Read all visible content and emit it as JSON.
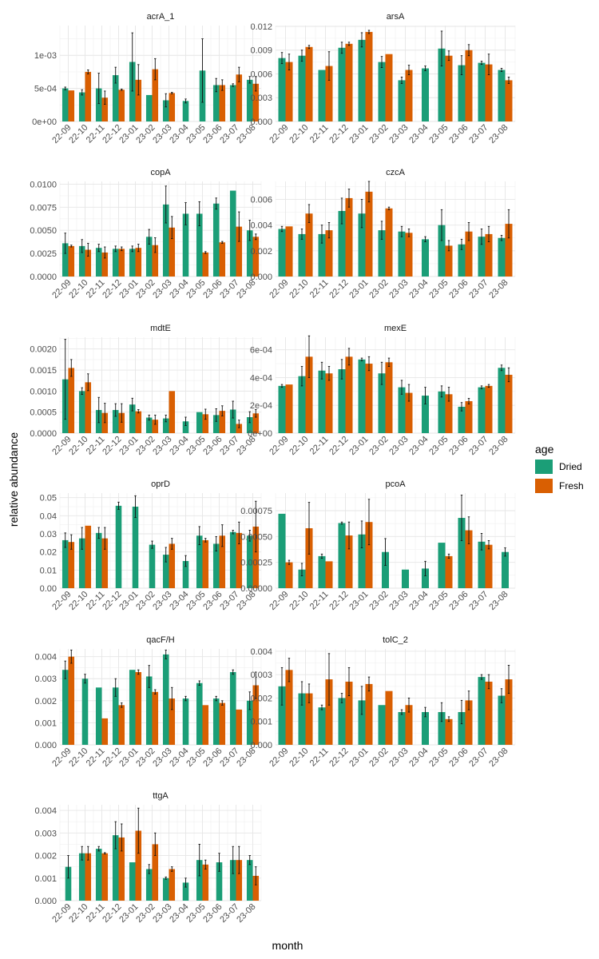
{
  "chart_data": {
    "type": "bar",
    "xlabel": "month",
    "ylabel": "relative abundance",
    "legend": {
      "title": "age",
      "placement": "right",
      "items": [
        {
          "name": "Dried",
          "color": "#1b9e77"
        },
        {
          "name": "Fresh",
          "color": "#d95f02"
        }
      ]
    },
    "months": [
      "22-09",
      "22-10",
      "22-11",
      "22-12",
      "23-01",
      "23-02",
      "23-03",
      "23-04",
      "23-05",
      "23-06",
      "23-07",
      "23-08"
    ],
    "panels": [
      {
        "title": "acrA_1",
        "ylim": [
          0,
          0.00145
        ],
        "ticks": [
          0,
          0.0005,
          0.001
        ],
        "tick_labels": [
          "0e+00",
          "5e-04",
          "1e-03"
        ],
        "dried": [
          0.0005,
          0.00044,
          0.0005,
          0.0007,
          0.0009,
          0.0004,
          0.00032,
          0.00031,
          0.00077,
          0.00055,
          0.00055,
          0.00063
        ],
        "dried_err": [
          2e-05,
          4e-05,
          0.00023,
          0.00012,
          0.00044,
          0,
          0.0001,
          3e-05,
          0.00048,
          0.0001,
          2e-05,
          5e-05
        ],
        "fresh": [
          0.00047,
          0.00075,
          0.00036,
          0.00048,
          0.00063,
          0.00079,
          0.00043,
          null,
          null,
          0.00055,
          0.00071,
          0.00057
        ],
        "fresh_err": [
          0,
          3e-05,
          0.0001,
          1e-05,
          0.00023,
          0.00016,
          1e-05,
          0,
          0,
          8e-05,
          0.00011,
          0.00011
        ]
      },
      {
        "title": "arsA",
        "ylim": [
          0,
          0.0121
        ],
        "ticks": [
          0,
          0.003,
          0.006,
          0.009,
          0.012
        ],
        "tick_labels": [
          "0.000",
          "0.003",
          "0.006",
          "0.009",
          "0.012"
        ],
        "dried": [
          0.008,
          0.0083,
          0.0065,
          0.0093,
          0.0103,
          0.0075,
          0.0052,
          0.0067,
          0.0092,
          0.0071,
          0.0074,
          0.0065
        ],
        "dried_err": [
          0.0007,
          0.0007,
          0,
          0.0007,
          0.0009,
          0.0007,
          0.0004,
          0.0003,
          0.0022,
          0.0012,
          0.0002,
          0.0002
        ],
        "fresh": [
          0.0075,
          0.0094,
          0.007,
          0.0098,
          0.0113,
          0.0085,
          0.0065,
          null,
          0.0083,
          0.009,
          0.0072,
          0.0052
        ],
        "fresh_err": [
          0.001,
          0.0002,
          0.0018,
          0.0002,
          0.0002,
          0,
          0.0006,
          0,
          0.0006,
          0.0007,
          0.0013,
          0.0004
        ]
      },
      {
        "title": "copA",
        "ylim": [
          0,
          0.0103
        ],
        "ticks": [
          0,
          0.0025,
          0.005,
          0.0075,
          0.01
        ],
        "tick_labels": [
          "0.0000",
          "0.0025",
          "0.0050",
          "0.0075",
          "0.0100"
        ],
        "dried": [
          0.0036,
          0.0033,
          0.0031,
          0.003,
          0.003,
          0.0043,
          0.0078,
          0.0068,
          0.0068,
          0.0079,
          0.0093,
          0.005
        ],
        "dried_err": [
          0.0011,
          0.0007,
          0.0004,
          0.0003,
          0.0003,
          0.0008,
          0.002,
          0.0012,
          0.0013,
          0.0006,
          0,
          0.0011
        ],
        "fresh": [
          0.0033,
          0.0029,
          0.0026,
          0.003,
          0.0031,
          0.0034,
          0.0053,
          null,
          0.0026,
          0.0037,
          0.0054,
          0.0043
        ],
        "fresh_err": [
          0.0001,
          0.0007,
          0.0006,
          0.0002,
          0.0004,
          0.0008,
          0.0012,
          0,
          0.0001,
          0.0001,
          0.0016,
          0.0003
        ]
      },
      {
        "title": "czcA",
        "ylim": [
          0,
          0.0074
        ],
        "ticks": [
          0,
          0.002,
          0.004,
          0.006
        ],
        "tick_labels": [
          "0.000",
          "0.002",
          "0.004",
          "0.006"
        ],
        "dried": [
          0.0037,
          0.0033,
          0.0033,
          0.0051,
          0.0049,
          0.0036,
          0.0035,
          0.0029,
          0.004,
          0.0025,
          0.0031,
          0.003
        ],
        "dried_err": [
          0.0002,
          0.0004,
          0.0007,
          0.001,
          0.0011,
          0.0007,
          0.0004,
          0.0002,
          0.0012,
          0.0004,
          0.0006,
          0.0002
        ],
        "fresh": [
          0.0039,
          0.0049,
          0.0036,
          0.0061,
          0.0066,
          0.0053,
          0.0034,
          null,
          0.0024,
          0.0035,
          0.0033,
          0.0041
        ],
        "fresh_err": [
          0,
          0.0007,
          0.0006,
          0.0007,
          0.0008,
          0.0001,
          0.0003,
          0,
          0.0004,
          0.0007,
          0.0006,
          0.0011
        ]
      },
      {
        "title": "mdtE",
        "ylim": [
          0,
          0.00228
        ],
        "ticks": [
          0,
          0.0005,
          0.001,
          0.0015,
          0.002
        ],
        "tick_labels": [
          "0.0000",
          "0.0005",
          "0.0010",
          "0.0015",
          "0.0020"
        ],
        "dried": [
          0.00128,
          0.001,
          0.00055,
          0.00055,
          0.00068,
          0.00037,
          0.00035,
          0.00028,
          0.0005,
          0.00043,
          0.00056,
          0.00038
        ],
        "dried_err": [
          0.00095,
          8e-05,
          0.0003,
          0.00015,
          0.00015,
          6e-05,
          8e-05,
          0.0001,
          0,
          0.00015,
          0.0002,
          0.00013
        ],
        "fresh": [
          0.00155,
          0.00121,
          0.00048,
          0.00048,
          0.00052,
          0.00032,
          0.001,
          null,
          0.00045,
          0.00053,
          0.00022,
          0.00047
        ],
        "fresh_err": [
          0.0002,
          0.0002,
          0.00023,
          0.00022,
          4e-05,
          0.00011,
          0,
          0,
          0.00012,
          0.00012,
          9e-05,
          9e-05
        ]
      },
      {
        "title": "mexE",
        "ylim": [
          0,
          0.00069
        ],
        "ticks": [
          0,
          0.0002,
          0.0004,
          0.0006
        ],
        "tick_labels": [
          "0e+00",
          "2e-04",
          "4e-04",
          "6e-04"
        ],
        "dried": [
          0.00034,
          0.00041,
          0.00045,
          0.00046,
          0.00053,
          0.00043,
          0.00033,
          0.00027,
          0.0003,
          0.00019,
          0.00033,
          0.00047
        ],
        "dried_err": [
          1e-05,
          7e-05,
          6e-05,
          7e-05,
          1e-05,
          8e-05,
          5e-05,
          6e-05,
          4e-05,
          3e-05,
          1e-05,
          2e-05
        ],
        "fresh": [
          0.00035,
          0.00055,
          0.00043,
          0.00055,
          0.0005,
          0.00051,
          0.00029,
          null,
          0.00028,
          0.00023,
          0.00034,
          0.00042
        ],
        "fresh_err": [
          0,
          0.00015,
          5e-05,
          6e-05,
          5e-05,
          3e-05,
          6e-05,
          0,
          5e-05,
          2e-05,
          1e-05,
          5e-05
        ]
      },
      {
        "title": "oprD",
        "ylim": [
          0,
          0.0525
        ],
        "ticks": [
          0,
          0.01,
          0.02,
          0.03,
          0.04,
          0.05
        ],
        "tick_labels": [
          "0.00",
          "0.01",
          "0.02",
          "0.03",
          "0.04",
          "0.05"
        ],
        "dried": [
          0.0265,
          0.0275,
          0.0305,
          0.0455,
          0.045,
          0.024,
          0.0185,
          0.015,
          0.029,
          0.0245,
          0.031,
          0.029
        ],
        "dried_err": [
          0.004,
          0.006,
          0.003,
          0.002,
          0.006,
          0.002,
          0.004,
          0.003,
          0.005,
          0.004,
          0.001,
          0.003
        ],
        "fresh": [
          0.0255,
          0.0345,
          0.0275,
          null,
          null,
          null,
          0.0245,
          null,
          0.0265,
          0.029,
          0.0305,
          0.034
        ],
        "fresh_err": [
          0.004,
          0,
          0.006,
          0,
          0,
          0,
          0.003,
          0,
          0.001,
          0.006,
          0.006,
          0.014
        ]
      },
      {
        "title": "pcoA",
        "ylim": [
          0,
          0.00092
        ],
        "ticks": [
          0,
          0.00025,
          0.0005,
          0.00075
        ],
        "tick_labels": [
          "0.00000",
          "0.00025",
          "0.00050",
          "0.00075"
        ],
        "dried": [
          0.00072,
          0.00018,
          0.00031,
          0.00063,
          0.00052,
          0.00035,
          0.00018,
          0.00019,
          0.00044,
          0.00068,
          0.00045,
          0.00035
        ],
        "dried_err": [
          0,
          6e-05,
          2e-05,
          1e-05,
          0.00013,
          0.00013,
          0,
          7e-05,
          0,
          0.00022,
          8e-05,
          4e-05
        ],
        "fresh": [
          0.00025,
          0.00058,
          0.00026,
          0.00051,
          0.00064,
          null,
          null,
          null,
          0.00031,
          0.00056,
          0.00042,
          null
        ],
        "fresh_err": [
          2e-05,
          0.00025,
          0,
          0.00013,
          0.00022,
          0,
          0,
          0,
          2e-05,
          0.00013,
          4e-05,
          0
        ]
      },
      {
        "title": "qacF/H",
        "ylim": [
          0,
          0.00435
        ],
        "ticks": [
          0,
          0.001,
          0.002,
          0.003,
          0.004
        ],
        "tick_labels": [
          "0.000",
          "0.001",
          "0.002",
          "0.003",
          "0.004"
        ],
        "dried": [
          0.0034,
          0.003,
          0.0026,
          0.0026,
          0.0034,
          0.0031,
          0.0041,
          0.0021,
          0.0028,
          0.0021,
          0.0033,
          0.002
        ],
        "dried_err": [
          0.0004,
          0.0002,
          0,
          0.0004,
          0,
          0.0005,
          0.0002,
          0.0001,
          0.0001,
          0.0001,
          0.0001,
          0.0004
        ],
        "fresh": [
          0.004,
          null,
          0.0012,
          0.0018,
          0.0033,
          0.0024,
          0.0021,
          null,
          0.0018,
          0.0019,
          0.0016,
          0.0027
        ],
        "fresh_err": [
          0.0003,
          0,
          0,
          0.0001,
          0.0001,
          0.0001,
          0.0005,
          0,
          0,
          0.0001,
          0,
          0.0006
        ]
      },
      {
        "title": "tolC_2",
        "ylim": [
          0,
          0.0041
        ],
        "ticks": [
          0,
          0.001,
          0.002,
          0.003,
          0.004
        ],
        "tick_labels": [
          "0.000",
          "0.001",
          "0.002",
          "0.003",
          "0.004"
        ],
        "dried": [
          0.0025,
          0.0022,
          0.0016,
          0.002,
          0.0019,
          0.0017,
          0.0014,
          0.0014,
          0.0014,
          0.0014,
          0.0029,
          0.0021
        ],
        "dried_err": [
          0.0008,
          0.0005,
          0.0001,
          0.0002,
          0.0006,
          0,
          0.0001,
          0.0002,
          0.0004,
          0.0005,
          0.0001,
          0.0003
        ],
        "fresh": [
          0.0032,
          0.0022,
          0.0028,
          0.0027,
          0.0026,
          0.0023,
          0.0017,
          null,
          0.0011,
          0.0019,
          0.0027,
          0.0028
        ],
        "fresh_err": [
          0.0005,
          0.0004,
          0.0011,
          0.0006,
          0.0003,
          0,
          0.0003,
          0,
          0.0001,
          0.0004,
          0.0003,
          0.0006
        ]
      },
      {
        "title": "ttgA",
        "ylim": [
          0,
          0.00425
        ],
        "ticks": [
          0,
          0.001,
          0.002,
          0.003,
          0.004
        ],
        "tick_labels": [
          "0.000",
          "0.001",
          "0.002",
          "0.003",
          "0.004"
        ],
        "dried": [
          0.0015,
          0.0021,
          0.0023,
          0.0029,
          0.0017,
          0.0014,
          0.001,
          0.0008,
          0.0018,
          0.0017,
          0.0018,
          0.0018
        ],
        "dried_err": [
          0.0005,
          0.0003,
          0.0001,
          0.0006,
          0,
          0.0002,
          5e-05,
          0.0002,
          0.0007,
          0.0004,
          0.0006,
          0.0002
        ],
        "fresh": [
          null,
          0.0021,
          0.0021,
          0.0028,
          0.0031,
          0.0025,
          0.0014,
          null,
          0.0016,
          null,
          0.0018,
          0.0011
        ],
        "fresh_err": [
          0,
          0.0003,
          3e-05,
          0.0006,
          0.001,
          0.0005,
          0.0001,
          0,
          0.0002,
          0,
          0.0006,
          0.0004
        ]
      }
    ]
  }
}
